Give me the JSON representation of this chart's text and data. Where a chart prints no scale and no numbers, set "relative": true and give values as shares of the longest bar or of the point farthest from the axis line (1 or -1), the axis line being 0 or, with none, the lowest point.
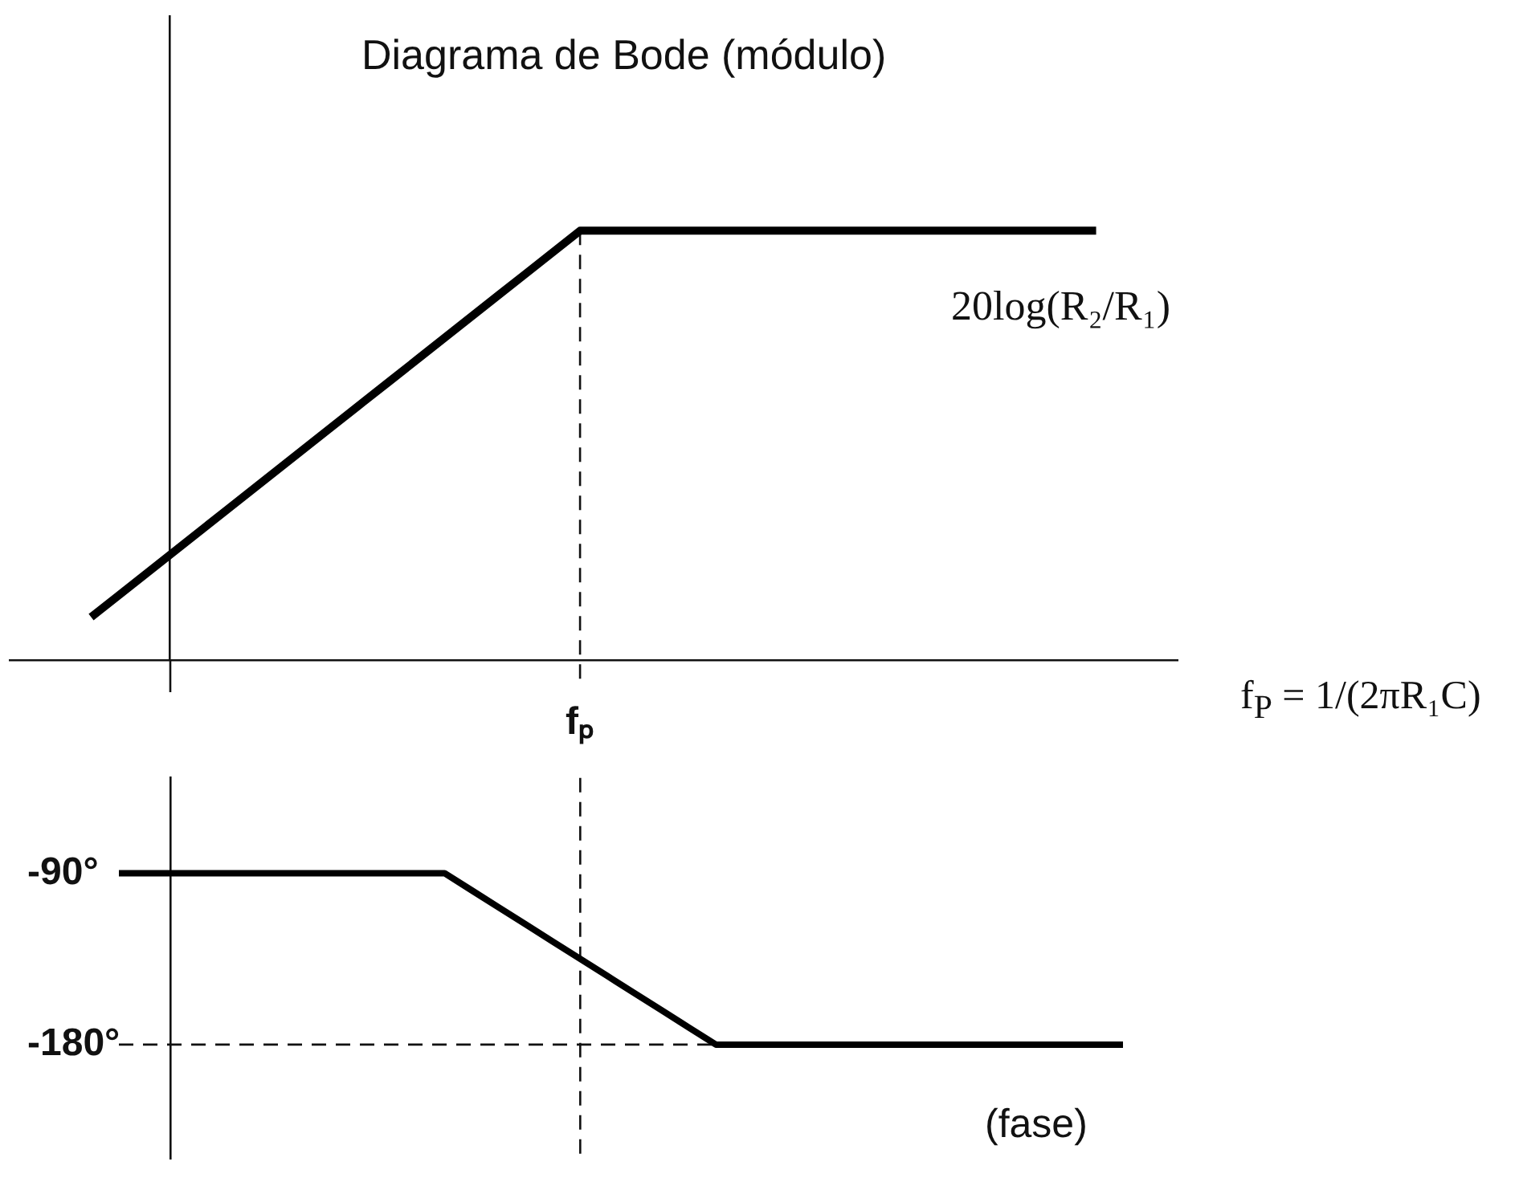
{
  "chart_data": [
    {
      "type": "line",
      "title": "Diagrama de Bode (módulo)",
      "relative": true,
      "tick_labels": false,
      "color": "#000000",
      "categories": [
        null,
        null,
        null,
        null,
        null,
        null,
        null,
        null,
        null,
        null,
        null,
        null,
        null,
        null,
        null,
        null,
        null,
        null,
        null,
        null,
        null,
        null,
        null,
        null,
        null,
        null,
        null,
        null,
        null,
        null,
        null,
        null,
        null,
        null,
        null,
        null,
        null,
        null,
        null,
        null,
        null,
        null,
        null,
        null
      ],
      "values": [
        null,
        null,
        null,
        0.1,
        0.15,
        0.2,
        0.25,
        0.3,
        0.35,
        0.4,
        0.45,
        0.5,
        0.55,
        0.6,
        0.65,
        0.7,
        0.75,
        0.8,
        0.85,
        0.9,
        0.95,
        1,
        1,
        1,
        1,
        1,
        1,
        1,
        1,
        1,
        1,
        1,
        1,
        1,
        1,
        1,
        1,
        1,
        1,
        1,
        1,
        null,
        null,
        null
      ],
      "annotations": [
        "20log(R₂/R₁)",
        "f$_{P}$ = 1/(2πR₁C)",
        "fₚ"
      ]
    },
    {
      "type": "line",
      "tick_labels": "y",
      "color": "#000000",
      "categories": [
        null,
        null,
        null,
        null,
        null,
        null,
        null,
        null,
        null,
        null,
        null,
        null,
        null,
        null,
        null,
        null,
        null,
        null,
        null,
        null,
        null,
        null,
        null,
        null,
        null,
        null,
        null,
        null,
        null,
        null,
        null,
        null,
        null,
        null,
        null,
        null,
        null,
        null
      ],
      "values": [
        -90,
        -90,
        -90,
        -90,
        -90,
        -90,
        -90,
        -90,
        -90,
        -90,
        -90,
        -90,
        -90,
        -99,
        -108,
        -117,
        -126,
        -135,
        -144,
        -153,
        -162,
        -171,
        -180,
        -180,
        -180,
        -180,
        -180,
        -180,
        -180,
        -180,
        -180,
        -180,
        -180,
        -180,
        -180,
        -180,
        -180,
        -180
      ],
      "ylim": [
        -240,
        -40
      ],
      "yticks": [
        {
          "value": -90,
          "label": "-90°"
        },
        {
          "value": -180,
          "label": "-180°"
        }
      ],
      "ref_lines": [
        {
          "axis": "y",
          "value": -180,
          "line_style": "dashed"
        }
      ],
      "annotations": [
        "(fase)"
      ]
    }
  ]
}
